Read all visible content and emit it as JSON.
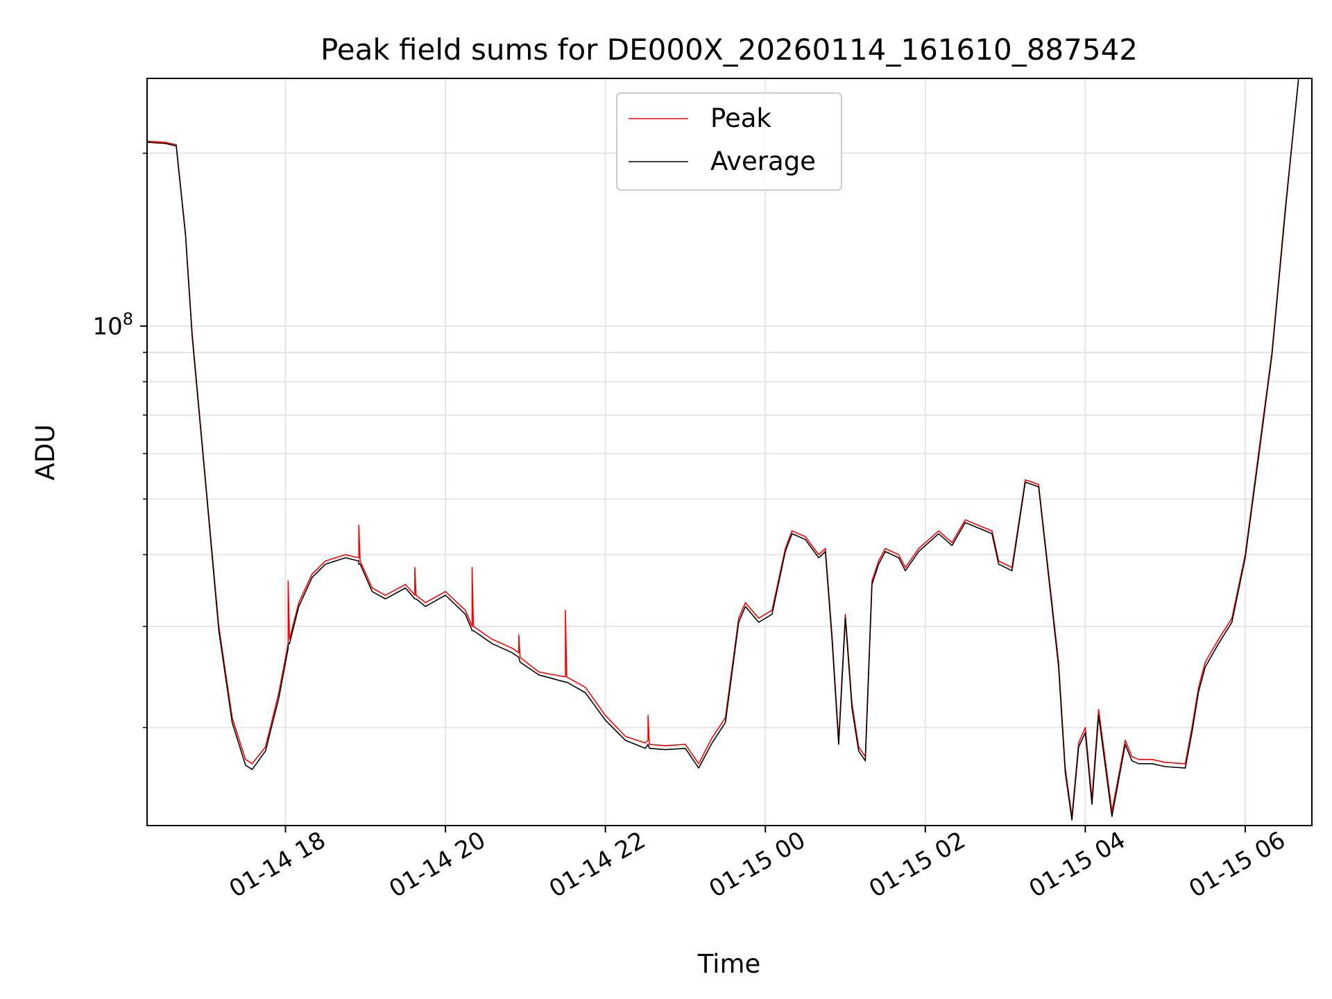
{
  "chart_data": {
    "type": "line",
    "title": "Peak field sums for DE000X_20260114_161610_887542",
    "xlabel": "Time",
    "ylabel": "ADU",
    "yscale": "log",
    "y_major_tick": {
      "value": 100000000,
      "base": "10",
      "exponent": "8"
    },
    "ylim": [
      13500000,
      270000000
    ],
    "xlim": [
      "2026-01-14T16:16:10",
      "2026-01-15T06:50:00"
    ],
    "x_ticks": [
      {
        "t": "2026-01-14T18:00",
        "label": "01-14 18"
      },
      {
        "t": "2026-01-14T20:00",
        "label": "01-14 20"
      },
      {
        "t": "2026-01-14T22:00",
        "label": "01-14 22"
      },
      {
        "t": "2026-01-15T00:00",
        "label": "01-15 00"
      },
      {
        "t": "2026-01-15T02:00",
        "label": "01-15 02"
      },
      {
        "t": "2026-01-15T04:00",
        "label": "01-15 04"
      },
      {
        "t": "2026-01-15T06:00",
        "label": "01-15 06"
      }
    ],
    "grid": true,
    "legend_position": "top-center",
    "series": [
      {
        "name": "Peak",
        "color": "#ff0000",
        "x": [
          "2026-01-14T16:16",
          "2026-01-14T16:30",
          "2026-01-14T16:38",
          "2026-01-14T16:45",
          "2026-01-14T16:50",
          "2026-01-14T17:00",
          "2026-01-14T17:10",
          "2026-01-14T17:20",
          "2026-01-14T17:30",
          "2026-01-14T17:35",
          "2026-01-14T17:45",
          "2026-01-14T17:55",
          "2026-01-14T18:02",
          "2026-01-14T18:02",
          "2026-01-14T18:03",
          "2026-01-14T18:10",
          "2026-01-14T18:20",
          "2026-01-14T18:30",
          "2026-01-14T18:45",
          "2026-01-14T18:55",
          "2026-01-14T18:55",
          "2026-01-14T18:56",
          "2026-01-14T19:05",
          "2026-01-14T19:15",
          "2026-01-14T19:30",
          "2026-01-14T19:37",
          "2026-01-14T19:37",
          "2026-01-14T19:38",
          "2026-01-14T19:45",
          "2026-01-14T20:00",
          "2026-01-14T20:15",
          "2026-01-14T20:20",
          "2026-01-14T20:20",
          "2026-01-14T20:21",
          "2026-01-14T20:35",
          "2026-01-14T20:50",
          "2026-01-14T20:55",
          "2026-01-14T20:55",
          "2026-01-14T20:56",
          "2026-01-14T21:10",
          "2026-01-14T21:30",
          "2026-01-14T21:30",
          "2026-01-14T21:31",
          "2026-01-14T21:45",
          "2026-01-14T22:00",
          "2026-01-14T22:15",
          "2026-01-14T22:30",
          "2026-01-14T22:32",
          "2026-01-14T22:32",
          "2026-01-14T22:33",
          "2026-01-14T22:45",
          "2026-01-14T23:00",
          "2026-01-14T23:10",
          "2026-01-14T23:20",
          "2026-01-14T23:30",
          "2026-01-14T23:40",
          "2026-01-14T23:45",
          "2026-01-14T23:55",
          "2026-01-15T00:05",
          "2026-01-15T00:15",
          "2026-01-15T00:20",
          "2026-01-15T00:30",
          "2026-01-15T00:40",
          "2026-01-15T00:45",
          "2026-01-15T00:50",
          "2026-01-15T00:55",
          "2026-01-15T01:00",
          "2026-01-15T01:05",
          "2026-01-15T01:10",
          "2026-01-15T01:15",
          "2026-01-15T01:20",
          "2026-01-15T01:25",
          "2026-01-15T01:30",
          "2026-01-15T01:40",
          "2026-01-15T01:45",
          "2026-01-15T01:55",
          "2026-01-15T02:10",
          "2026-01-15T02:20",
          "2026-01-15T02:30",
          "2026-01-15T02:40",
          "2026-01-15T02:50",
          "2026-01-15T02:55",
          "2026-01-15T03:05",
          "2026-01-15T03:15",
          "2026-01-15T03:25",
          "2026-01-15T03:35",
          "2026-01-15T03:40",
          "2026-01-15T03:45",
          "2026-01-15T03:50",
          "2026-01-15T03:55",
          "2026-01-15T04:00",
          "2026-01-15T04:05",
          "2026-01-15T04:10",
          "2026-01-15T04:20",
          "2026-01-15T04:30",
          "2026-01-15T04:35",
          "2026-01-15T04:40",
          "2026-01-15T04:50",
          "2026-01-15T05:00",
          "2026-01-15T05:15",
          "2026-01-15T05:20",
          "2026-01-15T05:25",
          "2026-01-15T05:30",
          "2026-01-15T05:40",
          "2026-01-15T05:50",
          "2026-01-15T06:00",
          "2026-01-15T06:10",
          "2026-01-15T06:20",
          "2026-01-15T06:30",
          "2026-01-15T06:40",
          "2026-01-15T06:50"
        ],
        "y": [
          210000000,
          209000000,
          207000000,
          145000000,
          97000000,
          54000000,
          30000000,
          20800000,
          17600000,
          17300000,
          18500000,
          23000000,
          28000000,
          36000000,
          28500000,
          33000000,
          37000000,
          39000000,
          40000000,
          39500000,
          45000000,
          39000000,
          35000000,
          34000000,
          35500000,
          34000000,
          38000000,
          34000000,
          33000000,
          34500000,
          32000000,
          30000000,
          38000000,
          30000000,
          28500000,
          27500000,
          27000000,
          29000000,
          26500000,
          25000000,
          24500000,
          32000000,
          24500000,
          23500000,
          21000000,
          19300000,
          18800000,
          19000000,
          21000000,
          18700000,
          18600000,
          18700000,
          17300000,
          19200000,
          20800000,
          31000000,
          33000000,
          31000000,
          32000000,
          41000000,
          44000000,
          43000000,
          40000000,
          41000000,
          29000000,
          19000000,
          31500000,
          22000000,
          18500000,
          17800000,
          36000000,
          39000000,
          41000000,
          40000000,
          38000000,
          41000000,
          44000000,
          42000000,
          46000000,
          45000000,
          44000000,
          39000000,
          38000000,
          54000000,
          53000000,
          33000000,
          26000000,
          17000000,
          14000000,
          18800000,
          20000000,
          15000000,
          21500000,
          14300000,
          19000000,
          17800000,
          17600000,
          17600000,
          17400000,
          17300000,
          20000000,
          23500000,
          26000000,
          28500000,
          31000000,
          40000000,
          60000000,
          90000000,
          160000000,
          272000000,
          272000000
        ]
      },
      {
        "name": "Average",
        "color": "#000000",
        "x": [
          "2026-01-14T16:16",
          "2026-01-14T16:30",
          "2026-01-14T16:38",
          "2026-01-14T16:45",
          "2026-01-14T16:50",
          "2026-01-14T17:00",
          "2026-01-14T17:10",
          "2026-01-14T17:20",
          "2026-01-14T17:30",
          "2026-01-14T17:35",
          "2026-01-14T17:45",
          "2026-01-14T17:55",
          "2026-01-14T18:02",
          "2026-01-14T18:02",
          "2026-01-14T18:03",
          "2026-01-14T18:10",
          "2026-01-14T18:20",
          "2026-01-14T18:30",
          "2026-01-14T18:45",
          "2026-01-14T18:55",
          "2026-01-14T18:55",
          "2026-01-14T18:56",
          "2026-01-14T19:05",
          "2026-01-14T19:15",
          "2026-01-14T19:30",
          "2026-01-14T19:37",
          "2026-01-14T19:37",
          "2026-01-14T19:38",
          "2026-01-14T19:45",
          "2026-01-14T20:00",
          "2026-01-14T20:15",
          "2026-01-14T20:20",
          "2026-01-14T20:20",
          "2026-01-14T20:21",
          "2026-01-14T20:35",
          "2026-01-14T20:50",
          "2026-01-14T20:55",
          "2026-01-14T20:55",
          "2026-01-14T20:56",
          "2026-01-14T21:10",
          "2026-01-14T21:30",
          "2026-01-14T21:30",
          "2026-01-14T21:31",
          "2026-01-14T21:45",
          "2026-01-14T22:00",
          "2026-01-14T22:15",
          "2026-01-14T22:30",
          "2026-01-14T22:32",
          "2026-01-14T22:32",
          "2026-01-14T22:33",
          "2026-01-14T22:45",
          "2026-01-14T23:00",
          "2026-01-14T23:10",
          "2026-01-14T23:20",
          "2026-01-14T23:30",
          "2026-01-14T23:40",
          "2026-01-14T23:45",
          "2026-01-14T23:55",
          "2026-01-15T00:05",
          "2026-01-15T00:15",
          "2026-01-15T00:20",
          "2026-01-15T00:30",
          "2026-01-15T00:40",
          "2026-01-15T00:45",
          "2026-01-15T00:50",
          "2026-01-15T00:55",
          "2026-01-15T01:00",
          "2026-01-15T01:05",
          "2026-01-15T01:10",
          "2026-01-15T01:15",
          "2026-01-15T01:20",
          "2026-01-15T01:25",
          "2026-01-15T01:30",
          "2026-01-15T01:40",
          "2026-01-15T01:45",
          "2026-01-15T01:55",
          "2026-01-15T02:10",
          "2026-01-15T02:20",
          "2026-01-15T02:30",
          "2026-01-15T02:40",
          "2026-01-15T02:50",
          "2026-01-15T02:55",
          "2026-01-15T03:05",
          "2026-01-15T03:15",
          "2026-01-15T03:25",
          "2026-01-15T03:35",
          "2026-01-15T03:40",
          "2026-01-15T03:45",
          "2026-01-15T03:50",
          "2026-01-15T03:55",
          "2026-01-15T04:00",
          "2026-01-15T04:05",
          "2026-01-15T04:10",
          "2026-01-15T04:20",
          "2026-01-15T04:30",
          "2026-01-15T04:35",
          "2026-01-15T04:40",
          "2026-01-15T04:50",
          "2026-01-15T05:00",
          "2026-01-15T05:15",
          "2026-01-15T05:20",
          "2026-01-15T05:25",
          "2026-01-15T05:30",
          "2026-01-15T05:40",
          "2026-01-15T05:50",
          "2026-01-15T06:00",
          "2026-01-15T06:10",
          "2026-01-15T06:20",
          "2026-01-15T06:30",
          "2026-01-15T06:40",
          "2026-01-15T06:50"
        ],
        "y": [
          209000000,
          208000000,
          206000000,
          144000000,
          96000000,
          53500000,
          29500000,
          20400000,
          17200000,
          16900000,
          18200000,
          22500000,
          27500000,
          28000000,
          28000000,
          32500000,
          36500000,
          38500000,
          39500000,
          39000000,
          38500000,
          38500000,
          34500000,
          33500000,
          35000000,
          33500000,
          33500000,
          33500000,
          32500000,
          34000000,
          31500000,
          29500000,
          29500000,
          29500000,
          28000000,
          27000000,
          26500000,
          26500000,
          26000000,
          24700000,
          24000000,
          24000000,
          24000000,
          23000000,
          20600000,
          19000000,
          18400000,
          18700000,
          18700000,
          18400000,
          18300000,
          18400000,
          17000000,
          18800000,
          20400000,
          30500000,
          32500000,
          30500000,
          31500000,
          40500000,
          43500000,
          42500000,
          39500000,
          40500000,
          28500000,
          18700000,
          31000000,
          21600000,
          18200000,
          17500000,
          35500000,
          38500000,
          40500000,
          39500000,
          37500000,
          40500000,
          43500000,
          41500000,
          45500000,
          44500000,
          43500000,
          38500000,
          37500000,
          53500000,
          52500000,
          32500000,
          25500000,
          16700000,
          13800000,
          18500000,
          19600000,
          14700000,
          21000000,
          14000000,
          18700000,
          17500000,
          17300000,
          17300000,
          17100000,
          17000000,
          19600000,
          23100000,
          25500000,
          28000000,
          30500000,
          39500000,
          59000000,
          89000000,
          158000000,
          270000000,
          270000000
        ]
      }
    ]
  }
}
